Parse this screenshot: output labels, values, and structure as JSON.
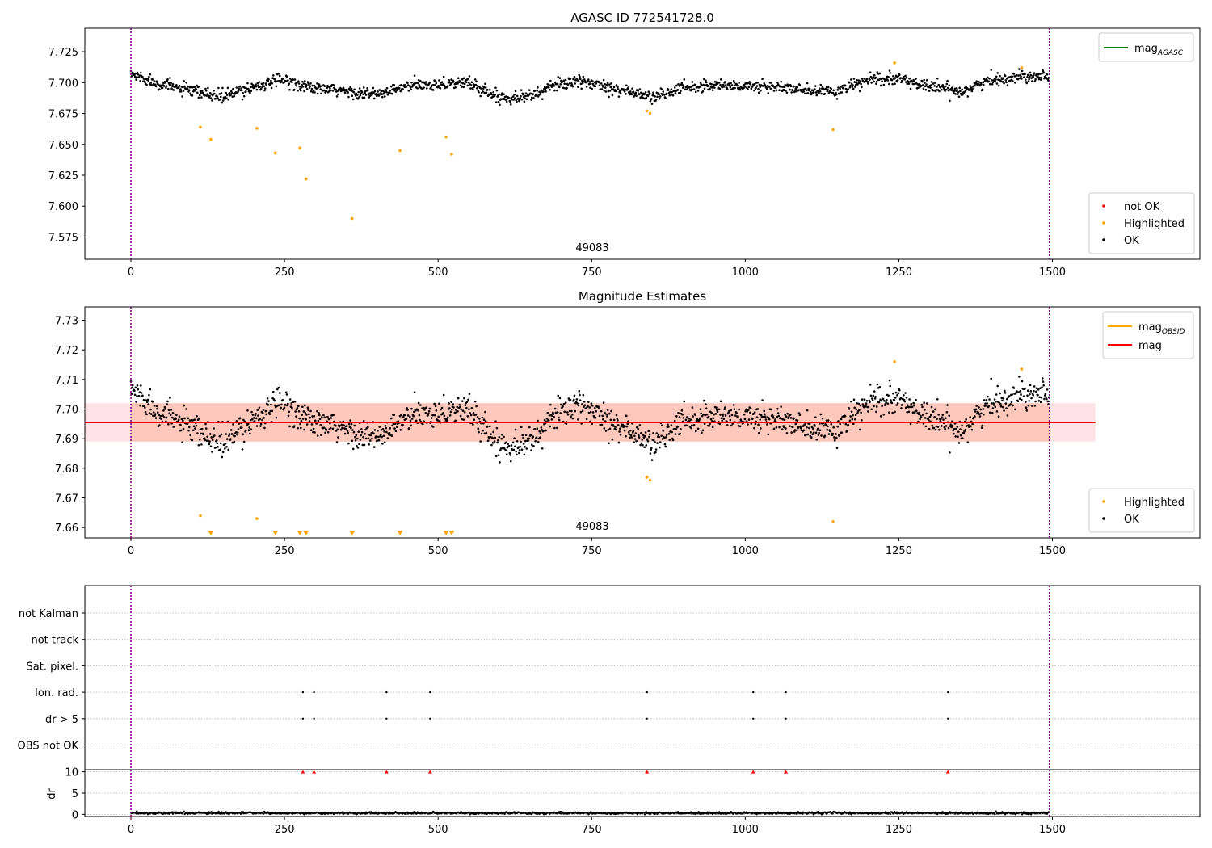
{
  "chart_data": [
    {
      "type": "scatter",
      "title": "AGASC ID 772541728.0",
      "xlabel": "",
      "ylabel": "",
      "xlim": [
        -75,
        1740
      ],
      "ylim": [
        7.557,
        7.744
      ],
      "xticks": [
        0,
        250,
        500,
        750,
        1000,
        1250,
        1500
      ],
      "yticks": [
        7.575,
        7.6,
        7.625,
        7.65,
        7.675,
        7.7,
        7.725
      ],
      "ytick_labels": [
        "7.575",
        "7.600",
        "7.625",
        "7.650",
        "7.675",
        "7.700",
        "7.725"
      ],
      "vlines": [
        0,
        1495
      ],
      "annotation": "49083",
      "legend_upper": {
        "placement": "upper-right",
        "entries": [
          {
            "label": "mag",
            "sub": "AGASC",
            "color": "#008000"
          }
        ]
      },
      "legend_lower": {
        "placement": "lower-right",
        "entries": [
          {
            "label": "not OK",
            "color": "#ff0000"
          },
          {
            "label": "Highlighted",
            "color": "#ffa500"
          },
          {
            "label": "OK",
            "color": "#000000"
          }
        ]
      },
      "ok_trend": [
        [
          0,
          7.707
        ],
        [
          40,
          7.7
        ],
        [
          100,
          7.693
        ],
        [
          150,
          7.688
        ],
        [
          200,
          7.697
        ],
        [
          250,
          7.702
        ],
        [
          300,
          7.695
        ],
        [
          350,
          7.693
        ],
        [
          400,
          7.69
        ],
        [
          450,
          7.697
        ],
        [
          500,
          7.699
        ],
        [
          550,
          7.7
        ],
        [
          600,
          7.688
        ],
        [
          650,
          7.689
        ],
        [
          700,
          7.7
        ],
        [
          750,
          7.7
        ],
        [
          800,
          7.694
        ],
        [
          850,
          7.688
        ],
        [
          900,
          7.696
        ],
        [
          950,
          7.698
        ],
        [
          1000,
          7.697
        ],
        [
          1050,
          7.697
        ],
        [
          1100,
          7.693
        ],
        [
          1150,
          7.693
        ],
        [
          1200,
          7.702
        ],
        [
          1250,
          7.703
        ],
        [
          1300,
          7.697
        ],
        [
          1350,
          7.693
        ],
        [
          1400,
          7.702
        ],
        [
          1450,
          7.705
        ],
        [
          1500,
          7.707
        ]
      ],
      "ok_noise": 0.0045,
      "highlighted_points": [
        [
          113,
          7.664
        ],
        [
          130,
          7.654
        ],
        [
          205,
          7.663
        ],
        [
          235,
          7.643
        ],
        [
          275,
          7.647
        ],
        [
          285,
          7.622
        ],
        [
          360,
          7.59
        ],
        [
          438,
          7.645
        ],
        [
          513,
          7.656
        ],
        [
          522,
          7.642
        ],
        [
          840,
          7.677
        ],
        [
          845,
          7.675
        ],
        [
          1143,
          7.662
        ],
        [
          1243,
          7.716
        ],
        [
          1450,
          7.712
        ]
      ],
      "not_ok_points": []
    },
    {
      "type": "scatter",
      "title": "Magnitude Estimates",
      "xlabel": "",
      "ylabel": "",
      "xlim": [
        -75,
        1740
      ],
      "ylim": [
        7.6565,
        7.7345
      ],
      "xticks": [
        0,
        250,
        500,
        750,
        1000,
        1250,
        1500
      ],
      "yticks": [
        7.66,
        7.67,
        7.68,
        7.69,
        7.7,
        7.71,
        7.72,
        7.73
      ],
      "ytick_labels": [
        "7.66",
        "7.67",
        "7.68",
        "7.69",
        "7.70",
        "7.71",
        "7.72",
        "7.73"
      ],
      "vlines": [
        0,
        1495
      ],
      "annotation": "49083",
      "mean_mag": 7.6955,
      "band": [
        7.689,
        7.702
      ],
      "band_xrange": [
        -75,
        1570
      ],
      "obsid_band_xrange": [
        0,
        1495
      ],
      "legend_upper": {
        "placement": "upper-right",
        "entries": [
          {
            "label": "mag",
            "sub": "OBSID",
            "color": "#ffa500"
          },
          {
            "label": "mag",
            "color": "#ff0000"
          }
        ]
      },
      "legend_lower": {
        "placement": "lower-right",
        "entries": [
          {
            "label": "Highlighted",
            "color": "#ffa500"
          },
          {
            "label": "OK",
            "color": "#000000"
          }
        ]
      },
      "ok_trend": [
        [
          0,
          7.707
        ],
        [
          40,
          7.7
        ],
        [
          100,
          7.693
        ],
        [
          150,
          7.688
        ],
        [
          200,
          7.697
        ],
        [
          250,
          7.702
        ],
        [
          300,
          7.695
        ],
        [
          350,
          7.693
        ],
        [
          400,
          7.69
        ],
        [
          450,
          7.697
        ],
        [
          500,
          7.699
        ],
        [
          550,
          7.7
        ],
        [
          600,
          7.688
        ],
        [
          650,
          7.689
        ],
        [
          700,
          7.7
        ],
        [
          750,
          7.7
        ],
        [
          800,
          7.694
        ],
        [
          850,
          7.688
        ],
        [
          900,
          7.696
        ],
        [
          950,
          7.698
        ],
        [
          1000,
          7.697
        ],
        [
          1050,
          7.697
        ],
        [
          1100,
          7.693
        ],
        [
          1150,
          7.693
        ],
        [
          1200,
          7.702
        ],
        [
          1250,
          7.703
        ],
        [
          1300,
          7.697
        ],
        [
          1350,
          7.693
        ],
        [
          1400,
          7.702
        ],
        [
          1450,
          7.705
        ],
        [
          1500,
          7.707
        ]
      ],
      "ok_noise": 0.0045,
      "highlighted_points": [
        [
          113,
          7.664
        ],
        [
          205,
          7.663
        ],
        [
          840,
          7.677
        ],
        [
          845,
          7.676
        ],
        [
          1143,
          7.662
        ],
        [
          1243,
          7.716
        ],
        [
          1450,
          7.7135
        ]
      ],
      "highlighted_offscale": [
        130,
        235,
        275,
        285,
        360,
        438,
        513,
        522
      ]
    },
    {
      "type": "scatter",
      "title": "",
      "xlim": [
        -75,
        1740
      ],
      "xticks": [
        0,
        250,
        500,
        750,
        1000,
        1250,
        1500
      ],
      "vlines": [
        0,
        1495
      ],
      "flag_rows": [
        "not Kalman",
        "not track",
        "Sat. pixel.",
        "Ion. rad.",
        "dr > 5",
        "OBS not OK"
      ],
      "flag_points": {
        "Ion. rad.": [
          280,
          298,
          416,
          487,
          840,
          1013,
          1066,
          1330
        ],
        "dr > 5": [
          280,
          298,
          416,
          487,
          840,
          1013,
          1066,
          1330
        ]
      },
      "dr_ylabel": "dr",
      "dr_ylim": [
        -0.5,
        10.5
      ],
      "dr_yticks": [
        0,
        5,
        10
      ],
      "dr_typical": 0.3,
      "dr_clipped_x": [
        280,
        298,
        416,
        487,
        840,
        1013,
        1066,
        1330
      ]
    }
  ]
}
